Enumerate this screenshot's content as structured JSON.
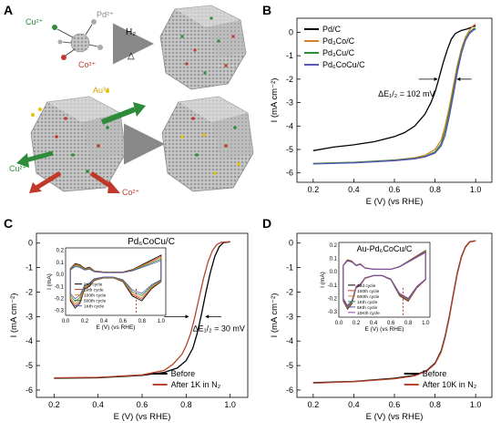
{
  "panel_labels": {
    "a": "A",
    "b": "B",
    "c": "C",
    "d": "D"
  },
  "panel_a": {
    "ions_top": [
      "Cu²⁺",
      "Pd²⁺",
      "Co²⁺"
    ],
    "reaction_h2": "H₂",
    "reaction_heat": "△",
    "ions_bottom": [
      "Au³⁺",
      "Cu²⁺",
      "Co²⁺"
    ]
  },
  "colors": {
    "pdc": "#000000",
    "pd3co": "#d9822b",
    "pd3cu": "#2e8b3a",
    "pd6cocu": "#5b55b5",
    "before": "#000000",
    "after": "#b5452b",
    "inset_marker": "#c0392b"
  },
  "chart_data": [
    {
      "id": "B",
      "type": "line",
      "title": "",
      "xlabel": "E (V) (vs RHE)",
      "ylabel": "I (mA cm⁻²)",
      "xlim": [
        0.12,
        1.08
      ],
      "ylim": [
        -6.4,
        0.6
      ],
      "xticks": [
        "0.2",
        "0.4",
        "0.6",
        "0.8",
        "1.0"
      ],
      "yticks": [
        "0",
        "-1",
        "-2",
        "-3",
        "-4",
        "-5",
        "-6"
      ],
      "legend_position": "top-left",
      "annotation": "ΔE₁/₂ = 102 mV",
      "series": [
        {
          "name": "Pd/C",
          "color": "#000000",
          "x": [
            0.2,
            0.3,
            0.4,
            0.5,
            0.6,
            0.65,
            0.7,
            0.75,
            0.78,
            0.8,
            0.82,
            0.84,
            0.86,
            0.88,
            0.9,
            0.93,
            0.96,
            0.99,
            1.0
          ],
          "y": [
            -5.05,
            -4.9,
            -4.8,
            -4.67,
            -4.45,
            -4.28,
            -4.0,
            -3.5,
            -3.0,
            -2.55,
            -1.95,
            -1.3,
            -0.75,
            -0.3,
            -0.05,
            0.08,
            0.15,
            0.25,
            0.28
          ]
        },
        {
          "name": "Pd₃Co/C",
          "color": "#d9822b",
          "x": [
            0.2,
            0.4,
            0.6,
            0.7,
            0.75,
            0.8,
            0.83,
            0.85,
            0.87,
            0.89,
            0.91,
            0.93,
            0.95,
            0.97,
            0.99,
            1.0
          ],
          "y": [
            -5.6,
            -5.55,
            -5.45,
            -5.35,
            -5.25,
            -5.0,
            -4.6,
            -4.0,
            -3.2,
            -2.3,
            -1.4,
            -0.7,
            -0.2,
            0.1,
            0.3,
            0.35
          ]
        },
        {
          "name": "Pd₃Cu/C",
          "color": "#2e8b3a",
          "x": [
            0.2,
            0.4,
            0.6,
            0.7,
            0.75,
            0.8,
            0.83,
            0.85,
            0.87,
            0.89,
            0.91,
            0.93,
            0.95,
            0.97,
            0.99,
            1.0
          ],
          "y": [
            -5.6,
            -5.55,
            -5.45,
            -5.38,
            -5.3,
            -5.1,
            -4.75,
            -4.2,
            -3.4,
            -2.5,
            -1.55,
            -0.8,
            -0.3,
            0.0,
            0.15,
            0.18
          ]
        },
        {
          "name": "Pd₆CoCu/C",
          "color": "#5b55b5",
          "x": [
            0.2,
            0.4,
            0.6,
            0.7,
            0.75,
            0.8,
            0.83,
            0.85,
            0.87,
            0.89,
            0.91,
            0.93,
            0.95,
            0.97,
            0.99,
            1.0
          ],
          "y": [
            -5.62,
            -5.57,
            -5.48,
            -5.4,
            -5.32,
            -5.15,
            -4.85,
            -4.4,
            -3.6,
            -2.7,
            -1.7,
            -0.9,
            -0.35,
            -0.05,
            0.1,
            0.12
          ]
        }
      ]
    },
    {
      "id": "C",
      "type": "line",
      "title": "Pd₆CoCu/C",
      "xlabel": "E (V) (vs RHE)",
      "ylabel": "I (mA cm⁻²)",
      "xlim": [
        0.12,
        1.08
      ],
      "ylim": [
        -6.3,
        0.4
      ],
      "xticks": [
        "0.2",
        "0.4",
        "0.6",
        "0.8",
        "1.0"
      ],
      "yticks": [
        "0",
        "-1",
        "-2",
        "-3",
        "-4",
        "-5",
        "-6"
      ],
      "legend_position": "bottom-right",
      "annotation": "ΔE₁/₂ = 30 mV",
      "series": [
        {
          "name": "Before",
          "color": "#000000",
          "x": [
            0.2,
            0.4,
            0.6,
            0.7,
            0.76,
            0.8,
            0.83,
            0.85,
            0.87,
            0.89,
            0.91,
            0.93,
            0.95,
            0.97,
            1.0
          ],
          "y": [
            -5.52,
            -5.5,
            -5.4,
            -5.28,
            -5.1,
            -4.8,
            -4.3,
            -3.7,
            -2.9,
            -2.0,
            -1.2,
            -0.55,
            -0.15,
            0.02,
            0.05
          ]
        },
        {
          "name": "After 1K in N₂",
          "color": "#b5452b",
          "x": [
            0.2,
            0.4,
            0.6,
            0.7,
            0.74,
            0.78,
            0.8,
            0.82,
            0.84,
            0.86,
            0.88,
            0.9,
            0.92,
            0.94,
            0.96,
            1.0
          ],
          "y": [
            -5.5,
            -5.48,
            -5.38,
            -5.2,
            -4.95,
            -4.55,
            -4.2,
            -3.7,
            -3.0,
            -2.2,
            -1.4,
            -0.75,
            -0.3,
            -0.05,
            0.03,
            0.06
          ]
        }
      ],
      "inset": {
        "type": "line",
        "xlabel": "E (V) (vs RHE)",
        "ylabel": "I (mA)",
        "xlim": [
          0.0,
          1.05
        ],
        "ylim": [
          -0.34,
          0.22
        ],
        "xticks": [
          "0.0",
          "0.2",
          "0.4",
          "0.6",
          "0.8",
          "1.0"
        ],
        "yticks": [
          "0.2",
          "0.1",
          "0.0",
          "-0.1",
          "-0.2",
          "-0.3"
        ],
        "marker_x": 0.74,
        "legend": [
          "2nd cycle",
          "50th cycle",
          "100th cycle",
          "500th cycle",
          "1Kth cycle"
        ],
        "series_colors": [
          "#000000",
          "#b5452b",
          "#d9822b",
          "#2e8b3a",
          "#5b55b5"
        ],
        "cv_scale": [
          1.0,
          0.94,
          0.88,
          0.8,
          0.72
        ]
      }
    },
    {
      "id": "D",
      "type": "line",
      "title": "Au-Pd₆CoCu/C",
      "xlabel": "E (V) (vs RHE)",
      "ylabel": "I (mA cm⁻²)",
      "xlim": [
        0.12,
        1.08
      ],
      "ylim": [
        -6.3,
        0.4
      ],
      "xticks": [
        "0.2",
        "0.4",
        "0.6",
        "0.8",
        "1.0"
      ],
      "yticks": [
        "0",
        "-1",
        "-2",
        "-3",
        "-4",
        "-5",
        "-6"
      ],
      "legend_position": "bottom-right",
      "series": [
        {
          "name": "Before",
          "color": "#000000",
          "x": [
            0.2,
            0.4,
            0.6,
            0.7,
            0.76,
            0.8,
            0.83,
            0.85,
            0.87,
            0.89,
            0.91,
            0.93,
            0.95,
            0.97,
            1.0
          ],
          "y": [
            -5.7,
            -5.65,
            -5.52,
            -5.4,
            -5.2,
            -4.9,
            -4.4,
            -3.8,
            -3.0,
            -2.1,
            -1.2,
            -0.55,
            -0.15,
            0.05,
            0.1
          ]
        },
        {
          "name": "After 10K in N₂",
          "color": "#b5452b",
          "x": [
            0.2,
            0.4,
            0.6,
            0.7,
            0.76,
            0.8,
            0.83,
            0.85,
            0.87,
            0.89,
            0.91,
            0.93,
            0.95,
            0.97,
            1.0
          ],
          "y": [
            -5.72,
            -5.66,
            -5.54,
            -5.42,
            -5.22,
            -4.93,
            -4.45,
            -3.85,
            -3.05,
            -2.15,
            -1.25,
            -0.58,
            -0.17,
            0.04,
            0.09
          ]
        }
      ],
      "inset": {
        "type": "line",
        "xlabel": "E (V) (vs RHE)",
        "ylabel": "I (mA)",
        "xlim": [
          0.0,
          1.05
        ],
        "ylim": [
          -0.34,
          0.22
        ],
        "xticks": [
          "0.0",
          "0.2",
          "0.4",
          "0.6",
          "0.8",
          "1.0"
        ],
        "yticks": [
          "0.2",
          "0.1",
          "0.0",
          "-0.1",
          "-0.2",
          "-0.3"
        ],
        "marker_x": 0.74,
        "legend": [
          "2nd cycle",
          "100th cycle",
          "500th cycle",
          "1Kth cycle",
          "5Kth cycle",
          "10Kth cycle"
        ],
        "series_colors": [
          "#000000",
          "#b5452b",
          "#d9822b",
          "#2e8b3a",
          "#5b55b5",
          "#8e44ad"
        ],
        "cv_scale": [
          1.0,
          0.98,
          0.96,
          0.94,
          0.92,
          0.9
        ]
      }
    }
  ]
}
